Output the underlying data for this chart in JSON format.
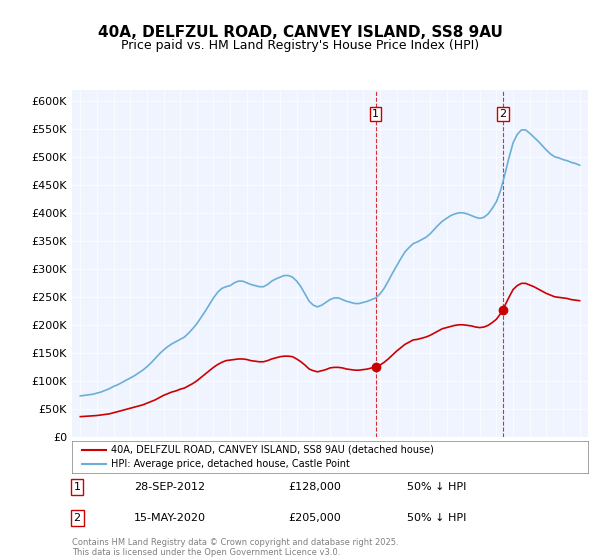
{
  "title": "40A, DELFZUL ROAD, CANVEY ISLAND, SS8 9AU",
  "subtitle": "Price paid vs. HM Land Registry's House Price Index (HPI)",
  "ylabel_ticks": [
    "£0",
    "£50K",
    "£100K",
    "£150K",
    "£200K",
    "£250K",
    "£300K",
    "£350K",
    "£400K",
    "£450K",
    "£500K",
    "£550K",
    "£600K"
  ],
  "ytick_values": [
    0,
    50000,
    100000,
    150000,
    200000,
    250000,
    300000,
    350000,
    400000,
    450000,
    500000,
    550000,
    600000
  ],
  "ylim": [
    0,
    620000
  ],
  "xlim_start": 1994.5,
  "xlim_end": 2025.5,
  "legend_line1": "40A, DELFZUL ROAD, CANVEY ISLAND, SS8 9AU (detached house)",
  "legend_line2": "HPI: Average price, detached house, Castle Point",
  "sale1_date": "28-SEP-2012",
  "sale1_price": "£128,000",
  "sale1_hpi": "50% ↓ HPI",
  "sale1_year": 2012.75,
  "sale2_date": "15-MAY-2020",
  "sale2_price": "£205,000",
  "sale2_hpi": "50% ↓ HPI",
  "sale2_year": 2020.38,
  "footer": "Contains HM Land Registry data © Crown copyright and database right 2025.\nThis data is licensed under the Open Government Licence v3.0.",
  "hpi_color": "#6baed6",
  "price_color": "#cc0000",
  "vline_color_1": "#cc0000",
  "vline_color_2": "#cc0000",
  "background_color": "#ffffff",
  "plot_bg_color": "#f0f4ff",
  "hpi_data_x": [
    1995,
    1995.25,
    1995.5,
    1995.75,
    1996,
    1996.25,
    1996.5,
    1996.75,
    1997,
    1997.25,
    1997.5,
    1997.75,
    1998,
    1998.25,
    1998.5,
    1998.75,
    1999,
    1999.25,
    1999.5,
    1999.75,
    2000,
    2000.25,
    2000.5,
    2000.75,
    2001,
    2001.25,
    2001.5,
    2001.75,
    2002,
    2002.25,
    2002.5,
    2002.75,
    2003,
    2003.25,
    2003.5,
    2003.75,
    2004,
    2004.25,
    2004.5,
    2004.75,
    2005,
    2005.25,
    2005.5,
    2005.75,
    2006,
    2006.25,
    2006.5,
    2006.75,
    2007,
    2007.25,
    2007.5,
    2007.75,
    2008,
    2008.25,
    2008.5,
    2008.75,
    2009,
    2009.25,
    2009.5,
    2009.75,
    2010,
    2010.25,
    2010.5,
    2010.75,
    2011,
    2011.25,
    2011.5,
    2011.75,
    2012,
    2012.25,
    2012.5,
    2012.75,
    2013,
    2013.25,
    2013.5,
    2013.75,
    2014,
    2014.25,
    2014.5,
    2014.75,
    2015,
    2015.25,
    2015.5,
    2015.75,
    2016,
    2016.25,
    2016.5,
    2016.75,
    2017,
    2017.25,
    2017.5,
    2017.75,
    2018,
    2018.25,
    2018.5,
    2018.75,
    2019,
    2019.25,
    2019.5,
    2019.75,
    2020,
    2020.25,
    2020.5,
    2020.75,
    2021,
    2021.25,
    2021.5,
    2021.75,
    2022,
    2022.25,
    2022.5,
    2022.75,
    2023,
    2023.25,
    2023.5,
    2023.75,
    2024,
    2024.25,
    2024.5,
    2024.75,
    2025
  ],
  "hpi_data_y": [
    73000,
    74000,
    75000,
    76000,
    78000,
    80000,
    83000,
    86000,
    90000,
    93000,
    97000,
    101000,
    105000,
    109000,
    114000,
    119000,
    125000,
    132000,
    140000,
    148000,
    155000,
    161000,
    166000,
    170000,
    174000,
    178000,
    185000,
    193000,
    202000,
    213000,
    224000,
    236000,
    248000,
    258000,
    265000,
    268000,
    270000,
    275000,
    278000,
    278000,
    275000,
    272000,
    270000,
    268000,
    268000,
    272000,
    278000,
    282000,
    285000,
    288000,
    288000,
    285000,
    278000,
    268000,
    255000,
    242000,
    235000,
    232000,
    235000,
    240000,
    245000,
    248000,
    248000,
    245000,
    242000,
    240000,
    238000,
    238000,
    240000,
    242000,
    245000,
    248000,
    255000,
    265000,
    278000,
    292000,
    305000,
    318000,
    330000,
    338000,
    345000,
    348000,
    352000,
    356000,
    362000,
    370000,
    378000,
    385000,
    390000,
    395000,
    398000,
    400000,
    400000,
    398000,
    395000,
    392000,
    390000,
    392000,
    398000,
    408000,
    420000,
    440000,
    468000,
    498000,
    525000,
    540000,
    548000,
    548000,
    542000,
    535000,
    528000,
    520000,
    512000,
    505000,
    500000,
    498000,
    495000,
    493000,
    490000,
    488000,
    485000
  ],
  "price_data_x": [
    1995,
    1995.25,
    1995.5,
    1995.75,
    1996,
    1996.25,
    1996.5,
    1996.75,
    1997,
    1997.25,
    1997.5,
    1997.75,
    1998,
    1998.25,
    1998.5,
    1998.75,
    1999,
    1999.25,
    1999.5,
    1999.75,
    2000,
    2000.25,
    2000.5,
    2000.75,
    2001,
    2001.25,
    2001.5,
    2001.75,
    2002,
    2002.25,
    2002.5,
    2002.75,
    2003,
    2003.25,
    2003.5,
    2003.75,
    2004,
    2004.25,
    2004.5,
    2004.75,
    2005,
    2005.25,
    2005.5,
    2005.75,
    2006,
    2006.25,
    2006.5,
    2006.75,
    2007,
    2007.25,
    2007.5,
    2007.75,
    2008,
    2008.25,
    2008.5,
    2008.75,
    2009,
    2009.25,
    2009.5,
    2009.75,
    2010,
    2010.25,
    2010.5,
    2010.75,
    2011,
    2011.25,
    2011.5,
    2011.75,
    2012,
    2012.25,
    2012.5,
    2012.75,
    2013,
    2013.25,
    2013.5,
    2013.75,
    2014,
    2014.25,
    2014.5,
    2014.75,
    2015,
    2015.25,
    2015.5,
    2015.75,
    2016,
    2016.25,
    2016.5,
    2016.75,
    2017,
    2017.25,
    2017.5,
    2017.75,
    2018,
    2018.25,
    2018.5,
    2018.75,
    2019,
    2019.25,
    2019.5,
    2019.75,
    2020,
    2020.25,
    2020.5,
    2020.75,
    2021,
    2021.25,
    2021.5,
    2021.75,
    2022,
    2022.25,
    2022.5,
    2022.75,
    2023,
    2023.25,
    2023.5,
    2023.75,
    2024,
    2024.25,
    2024.5,
    2024.75,
    2025
  ],
  "price_data_y": [
    36000,
    36500,
    37000,
    37500,
    38000,
    39000,
    40000,
    41000,
    43000,
    45000,
    47000,
    49000,
    51000,
    53000,
    55000,
    57000,
    60000,
    63000,
    66000,
    70000,
    74000,
    77000,
    80000,
    82000,
    85000,
    87000,
    91000,
    95000,
    100000,
    106000,
    112000,
    118000,
    124000,
    129000,
    133000,
    136000,
    137000,
    138000,
    139000,
    139000,
    138000,
    136000,
    135000,
    134000,
    134000,
    136000,
    139000,
    141000,
    143000,
    144000,
    144000,
    143000,
    139000,
    134000,
    128000,
    121000,
    118000,
    116000,
    118000,
    120000,
    123000,
    124000,
    124000,
    123000,
    121000,
    120000,
    119000,
    119000,
    120000,
    121000,
    123000,
    124000,
    128000,
    133000,
    139000,
    146000,
    153000,
    159000,
    165000,
    169000,
    173000,
    174000,
    176000,
    178000,
    181000,
    185000,
    189000,
    193000,
    195000,
    197000,
    199000,
    200000,
    200000,
    199000,
    198000,
    196000,
    195000,
    196000,
    199000,
    204000,
    210000,
    220000,
    234000,
    249000,
    263000,
    270000,
    274000,
    274000,
    271000,
    268000,
    264000,
    260000,
    256000,
    253000,
    250000,
    249000,
    248000,
    247000,
    245000,
    244000,
    243000
  ]
}
